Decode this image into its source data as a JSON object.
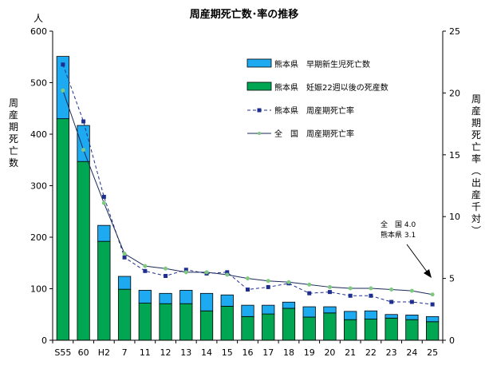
{
  "chart_data": {
    "type": "bar",
    "title": "周産期死亡数･率の推移",
    "categories": [
      "S55",
      "60",
      "H2",
      "7",
      "11",
      "12",
      "13",
      "14",
      "15",
      "16",
      "17",
      "18",
      "19",
      "20",
      "21",
      "22",
      "23",
      "24",
      "25"
    ],
    "left_axis": {
      "unit": "人",
      "label": [
        "周",
        "産",
        "期",
        "死",
        "亡",
        "数"
      ],
      "ylim": [
        0,
        600
      ],
      "ticks": [
        "0",
        "100",
        "200",
        "300",
        "400",
        "500",
        "600"
      ]
    },
    "right_axis": {
      "label": [
        "周",
        "産",
        "期",
        "死",
        "亡",
        "率",
        "︵",
        "出",
        "産",
        "千",
        "対",
        "︶"
      ],
      "ylim": [
        0,
        25
      ],
      "ticks": [
        "0",
        "5",
        "10",
        "15",
        "20",
        "25"
      ]
    },
    "series": [
      {
        "name": "熊本県　妊娠22週以後の死産数",
        "type": "bar",
        "axis": "left",
        "color": "#00a651",
        "values": [
          430,
          347,
          192,
          99,
          72,
          71,
          71,
          57,
          66,
          46,
          51,
          62,
          45,
          53,
          40,
          41,
          43,
          40,
          36
        ]
      },
      {
        "name": "熊本県　早期新生児死亡数",
        "type": "bar",
        "axis": "left",
        "stacked": true,
        "color": "#1eaaf1",
        "values": [
          121,
          70,
          31,
          25,
          25,
          20,
          26,
          34,
          22,
          22,
          17,
          12,
          20,
          12,
          16,
          16,
          7,
          9,
          10
        ]
      },
      {
        "name": "熊本県　周産期死亡率",
        "type": "line",
        "axis": "right",
        "color": "#1f2f8f",
        "dash": "4,3",
        "marker": "square",
        "values": [
          22.3,
          17.7,
          11.6,
          6.7,
          5.6,
          5.2,
          5.7,
          5.4,
          5.5,
          4.1,
          4.3,
          4.6,
          3.8,
          3.9,
          3.6,
          3.6,
          3.1,
          3.1,
          2.9
        ]
      },
      {
        "name": "全　国　周産期死亡率",
        "type": "line",
        "axis": "right",
        "color": "#1a2a5a",
        "marker": "dot",
        "marker_color": "#7fc97f",
        "values": [
          20.2,
          15.4,
          11.1,
          7.0,
          6.0,
          5.8,
          5.5,
          5.5,
          5.3,
          5.0,
          4.8,
          4.7,
          4.5,
          4.3,
          4.2,
          4.2,
          4.1,
          4.0,
          3.7
        ]
      }
    ],
    "legend_order": [
      1,
      0,
      2,
      3
    ],
    "legend_position": "top-right",
    "annotation": {
      "lines": [
        "全　国 4.0",
        "熊本県 3.1"
      ]
    }
  }
}
